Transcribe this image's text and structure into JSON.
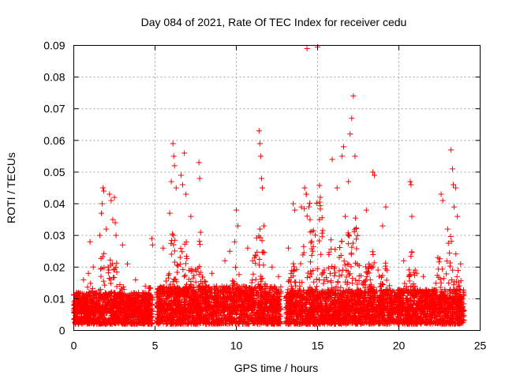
{
  "chart_data": {
    "type": "scatter",
    "title": "Day 084 of 2021, Rate Of TEC Index for receiver cedu",
    "xlabel": "GPS time / hours",
    "ylabel": "ROTI / TECUs",
    "xlim": [
      0,
      25
    ],
    "ylim": [
      0,
      0.09
    ],
    "xticks": [
      0,
      5,
      10,
      15,
      20,
      25
    ],
    "xtick_labels": [
      "0",
      "5",
      "10",
      "15",
      "20",
      "25"
    ],
    "yticks": [
      0,
      0.01,
      0.02,
      0.03,
      0.04,
      0.05,
      0.06,
      0.07,
      0.08,
      0.09
    ],
    "ytick_labels": [
      "0",
      "0.01",
      "0.02",
      "0.03",
      "0.04",
      "0.05",
      "0.06",
      "0.07",
      "0.08",
      "0.09"
    ],
    "grid": true,
    "marker": "+",
    "color": "#ff0000",
    "data_gaps_hours": [
      [
        4.85,
        5.1
      ],
      [
        12.75,
        13.05
      ]
    ],
    "series": [
      {
        "name": "ROTI",
        "points": [
          [
            0.3,
            0.012
          ],
          [
            0.6,
            0.016
          ],
          [
            0.9,
            0.018
          ],
          [
            1.0,
            0.028
          ],
          [
            1.2,
            0.02
          ],
          [
            1.6,
            0.03
          ],
          [
            1.7,
            0.037
          ],
          [
            1.75,
            0.04
          ],
          [
            1.8,
            0.045
          ],
          [
            1.85,
            0.044
          ],
          [
            2.0,
            0.032
          ],
          [
            2.2,
            0.043
          ],
          [
            2.3,
            0.041
          ],
          [
            2.4,
            0.035
          ],
          [
            2.5,
            0.042
          ],
          [
            2.55,
            0.034
          ],
          [
            2.6,
            0.03
          ],
          [
            3.0,
            0.027
          ],
          [
            3.3,
            0.021
          ],
          [
            3.8,
            0.016
          ],
          [
            4.4,
            0.014
          ],
          [
            4.8,
            0.029
          ],
          [
            4.85,
            0.027
          ],
          [
            5.5,
            0.026
          ],
          [
            5.9,
            0.037
          ],
          [
            6.0,
            0.047
          ],
          [
            6.1,
            0.059
          ],
          [
            6.15,
            0.055
          ],
          [
            6.2,
            0.052
          ],
          [
            6.3,
            0.045
          ],
          [
            6.6,
            0.049
          ],
          [
            6.7,
            0.046
          ],
          [
            6.8,
            0.056
          ],
          [
            6.9,
            0.043
          ],
          [
            7.2,
            0.036
          ],
          [
            7.7,
            0.053
          ],
          [
            7.75,
            0.048
          ],
          [
            7.8,
            0.031
          ],
          [
            8.5,
            0.018
          ],
          [
            9.3,
            0.022
          ],
          [
            9.6,
            0.025
          ],
          [
            9.9,
            0.028
          ],
          [
            10.0,
            0.038
          ],
          [
            10.1,
            0.033
          ],
          [
            10.7,
            0.026
          ],
          [
            11.0,
            0.022
          ],
          [
            11.4,
            0.063
          ],
          [
            11.45,
            0.059
          ],
          [
            11.5,
            0.055
          ],
          [
            11.55,
            0.048
          ],
          [
            11.6,
            0.045
          ],
          [
            11.7,
            0.033
          ],
          [
            12.2,
            0.02
          ],
          [
            12.6,
            0.017
          ],
          [
            13.2,
            0.026
          ],
          [
            13.5,
            0.04
          ],
          [
            13.6,
            0.038
          ],
          [
            14.0,
            0.039
          ],
          [
            14.2,
            0.045
          ],
          [
            14.3,
            0.043
          ],
          [
            14.35,
            0.089
          ],
          [
            14.7,
            0.025
          ],
          [
            15.0,
            0.0895
          ],
          [
            15.2,
            0.024
          ],
          [
            15.9,
            0.054
          ],
          [
            16.2,
            0.045
          ],
          [
            16.5,
            0.055
          ],
          [
            16.6,
            0.058
          ],
          [
            16.7,
            0.036
          ],
          [
            16.9,
            0.047
          ],
          [
            17.0,
            0.062
          ],
          [
            17.1,
            0.067
          ],
          [
            17.2,
            0.074
          ],
          [
            17.3,
            0.055
          ],
          [
            18.0,
            0.038
          ],
          [
            18.4,
            0.05
          ],
          [
            18.5,
            0.049
          ],
          [
            19.0,
            0.033
          ],
          [
            19.2,
            0.039
          ],
          [
            20.3,
            0.022
          ],
          [
            20.7,
            0.047
          ],
          [
            20.75,
            0.046
          ],
          [
            20.8,
            0.036
          ],
          [
            21.1,
            0.018
          ],
          [
            21.5,
            0.017
          ],
          [
            22.4,
            0.023
          ],
          [
            22.6,
            0.043
          ],
          [
            22.7,
            0.041
          ],
          [
            23.0,
            0.032
          ],
          [
            23.2,
            0.057
          ],
          [
            23.3,
            0.051
          ],
          [
            23.35,
            0.046
          ],
          [
            23.4,
            0.039
          ],
          [
            23.5,
            0.045
          ],
          [
            23.6,
            0.036
          ],
          [
            23.8,
            0.021
          ]
        ]
      }
    ],
    "dense_band": {
      "description": "continuous background activity",
      "segments": [
        {
          "x": [
            0.0,
            4.85
          ],
          "y_range": [
            0.002,
            0.012
          ]
        },
        {
          "x": [
            5.1,
            12.75
          ],
          "y_range": [
            0.002,
            0.014
          ]
        },
        {
          "x": [
            13.05,
            24.0
          ],
          "y_range": [
            0.002,
            0.013
          ]
        }
      ]
    }
  }
}
